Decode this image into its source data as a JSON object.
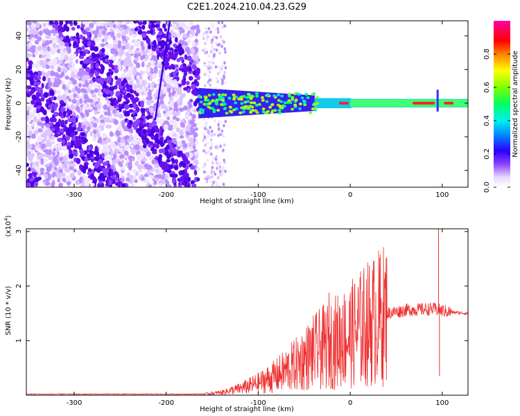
{
  "title": "C2E1.2024.210.04.23.G29",
  "colors": {
    "snr_line": "#ee3030",
    "spectrogram_core": "#5a00e6",
    "axis": "#000000"
  },
  "chart_data": [
    {
      "type": "heatmap",
      "xlabel": "Height of straight line (km)",
      "ylabel": "Frequency (Hz)",
      "xlim": [
        -352,
        128
      ],
      "ylim": [
        -50,
        49
      ],
      "x_ticks": [
        -300,
        -200,
        -100,
        0,
        100
      ],
      "y_ticks": [
        -40,
        -20,
        0,
        20,
        40
      ],
      "colorbar": {
        "label": "Normalized spectral amplitude",
        "range": [
          0,
          1
        ],
        "ticks": [
          "0.0",
          "0.2",
          "0.4",
          "0.6",
          "0.8"
        ],
        "tick_values": [
          0,
          0.2,
          0.4,
          0.6,
          0.8
        ]
      },
      "features": {
        "broadband_noise_x_range": [
          -352,
          -165
        ],
        "sparse_noise_x_range": [
          -160,
          -135
        ],
        "narrow_band_x_range": [
          -165,
          128
        ],
        "band_center_hz": 0
      }
    },
    {
      "type": "line",
      "xlabel": "Height of straight line (km)",
      "ylabel": "SNR (10 * v/v)",
      "y_scale_label": "(x10",
      "y_scale_exp": "4",
      "y_scale_close": ")",
      "xlim": [
        -352,
        128
      ],
      "ylim": [
        0,
        3.05
      ],
      "x_ticks": [
        -300,
        -200,
        -100,
        0,
        100
      ],
      "y_ticks": [
        1,
        2,
        3
      ],
      "series": [
        {
          "envelope": [
            {
              "x": -352,
              "y": 0.02
            },
            {
              "x": -160,
              "y": 0.02
            },
            {
              "x": -140,
              "y": 0.05
            },
            {
              "x": -120,
              "y": 0.12
            },
            {
              "x": -100,
              "y": 0.22
            },
            {
              "x": -80,
              "y": 0.36
            },
            {
              "x": -60,
              "y": 0.55
            },
            {
              "x": -40,
              "y": 0.78
            },
            {
              "x": -20,
              "y": 0.95
            },
            {
              "x": 0,
              "y": 1.1
            },
            {
              "x": 20,
              "y": 1.32
            },
            {
              "x": 40,
              "y": 1.5
            },
            {
              "x": 60,
              "y": 1.56
            },
            {
              "x": 90,
              "y": 1.58
            },
            {
              "x": 110,
              "y": 1.52
            },
            {
              "x": 128,
              "y": 1.5
            }
          ],
          "spikes": [
            {
              "x": -23,
              "y": 1.88
            },
            {
              "x": -8,
              "y": 1.65
            },
            {
              "x": 96,
              "y": 3.05
            },
            {
              "x": 97,
              "y": 0.35
            }
          ]
        }
      ]
    }
  ]
}
